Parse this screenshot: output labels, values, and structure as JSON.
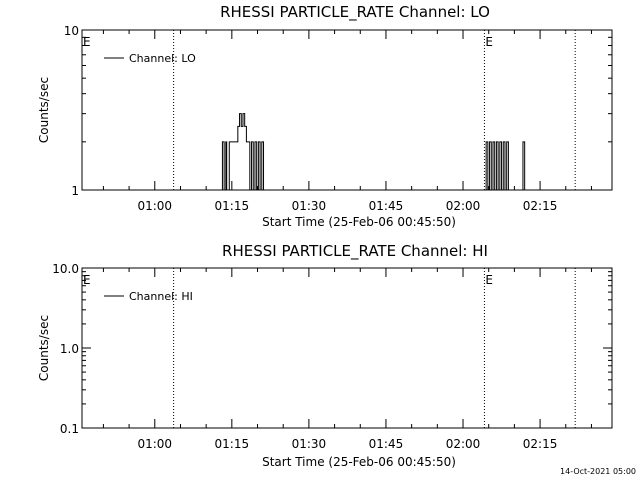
{
  "footer": {
    "timestamp": "14-Oct-2021 05:00"
  },
  "chart_data": [
    {
      "type": "line",
      "title": "RHESSI PARTICLE_RATE Channel: LO",
      "xlabel": "Start Time (25-Feb-06 00:45:50)",
      "ylabel": "Counts/sec",
      "y_scale": "log",
      "ylim": [
        1,
        10
      ],
      "y_ticks": [
        "1",
        "10"
      ],
      "xlim": [
        "00:45:50",
        "02:29:00"
      ],
      "x_ticks": [
        "01:00",
        "01:15",
        "01:30",
        "01:45",
        "02:00",
        "02:15"
      ],
      "legend": {
        "entries": [
          "Channel: LO"
        ],
        "position": "top-left"
      },
      "markers": [
        {
          "label": "E",
          "time": "00:45:50",
          "dotted": false
        },
        {
          "label": "",
          "time": "01:03:40",
          "dotted": true
        },
        {
          "label": "E",
          "time": "02:04:10",
          "dotted": true
        },
        {
          "label": "",
          "time": "02:21:50",
          "dotted": true
        }
      ],
      "series": [
        {
          "name": "Channel: LO",
          "x": [
            "01:12:40",
            "01:13:10",
            "01:13:30",
            "01:13:50",
            "01:14:00",
            "01:14:30",
            "01:14:50",
            "01:15:10",
            "01:15:30",
            "01:15:50",
            "01:16:10",
            "01:16:30",
            "01:16:50",
            "01:17:10",
            "01:17:30",
            "01:17:50",
            "01:18:10",
            "01:18:30",
            "01:18:50",
            "01:19:10",
            "01:19:30",
            "01:19:50",
            "01:20:10",
            "01:20:30",
            "01:20:50",
            "01:21:10",
            "01:21:30",
            "01:21:50",
            "01:22:10",
            "01:22:30",
            "01:22:50",
            "02:04:10",
            "02:04:30",
            "02:04:50",
            "02:05:10",
            "02:05:30",
            "02:05:50",
            "02:06:10",
            "02:06:30",
            "02:06:50",
            "02:07:10",
            "02:07:30",
            "02:07:50",
            "02:08:10",
            "02:08:30",
            "02:08:50",
            "02:09:10",
            "02:09:30",
            "02:09:50",
            "02:11:20",
            "02:11:40",
            "02:12:00"
          ],
          "y": [
            1,
            2,
            1,
            2,
            1,
            2,
            2,
            2,
            2,
            2,
            2.5,
            3,
            2.5,
            3,
            2.5,
            2,
            2,
            1,
            2,
            1,
            2,
            1,
            2,
            1,
            2,
            1,
            1,
            1,
            1,
            1,
            1,
            1,
            2,
            1,
            2,
            1,
            2,
            1,
            2,
            1,
            2,
            1,
            2,
            1,
            2,
            1,
            1,
            1,
            1,
            1,
            2,
            1
          ]
        }
      ]
    },
    {
      "type": "line",
      "title": "RHESSI PARTICLE_RATE Channel: HI",
      "xlabel": "Start Time (25-Feb-06 00:45:50)",
      "ylabel": "Counts/sec",
      "y_scale": "log",
      "ylim": [
        0.1,
        10
      ],
      "y_ticks": [
        "0.1",
        "1.0",
        "10.0"
      ],
      "xlim": [
        "00:45:50",
        "02:29:00"
      ],
      "x_ticks": [
        "01:00",
        "01:15",
        "01:30",
        "01:45",
        "02:00",
        "02:15"
      ],
      "legend": {
        "entries": [
          "Channel: HI"
        ],
        "position": "top-left"
      },
      "markers": [
        {
          "label": "E",
          "time": "00:45:50",
          "dotted": false
        },
        {
          "label": "",
          "time": "01:03:40",
          "dotted": true
        },
        {
          "label": "E",
          "time": "02:04:10",
          "dotted": true
        },
        {
          "label": "",
          "time": "02:21:50",
          "dotted": true
        }
      ],
      "series": [
        {
          "name": "Channel: HI",
          "x": [],
          "y": []
        }
      ]
    }
  ]
}
